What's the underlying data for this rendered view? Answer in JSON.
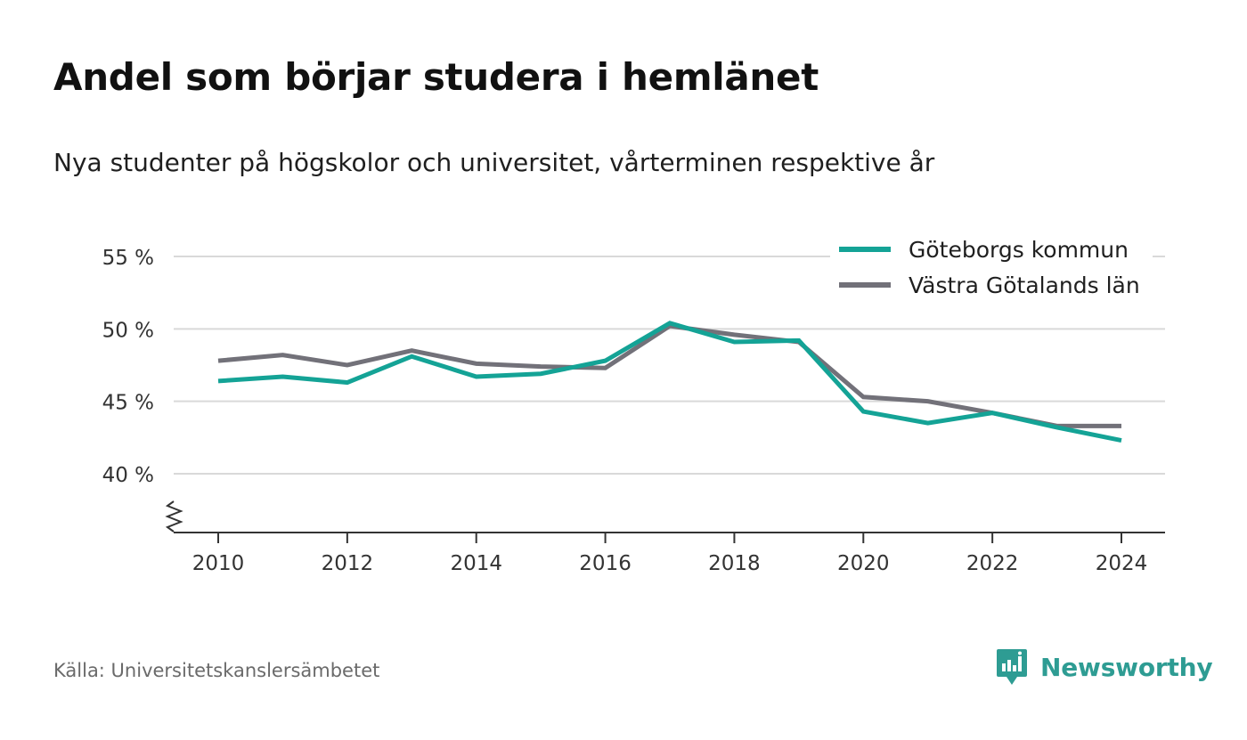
{
  "title": "Andel som börjar studera i hemlänet",
  "subtitle": "Nya studenter på högskolor och universitet, vårterminen respektive år",
  "source": "Källa: Universitetskanslersämbetet",
  "brand": {
    "name": "Newsworthy",
    "color": "#2e9c93",
    "icon": "chart-bubble-icon"
  },
  "chart_data": {
    "type": "line",
    "x": [
      2010,
      2011,
      2012,
      2013,
      2014,
      2015,
      2016,
      2017,
      2018,
      2019,
      2020,
      2021,
      2022,
      2023,
      2024
    ],
    "x_ticks": [
      2010,
      2012,
      2014,
      2016,
      2018,
      2020,
      2022,
      2024
    ],
    "x_tick_labels": [
      "2010",
      "2012",
      "2014",
      "2016",
      "2018",
      "2020",
      "2022",
      "2024"
    ],
    "y_ticks": [
      40,
      45,
      50,
      55
    ],
    "y_tick_labels": [
      "40 %",
      "45 %",
      "50 %",
      "55 %"
    ],
    "ylim": [
      36,
      55
    ],
    "axis_break": true,
    "grid": true,
    "legend_position": "top-right",
    "series": [
      {
        "name": "Göteborgs kommun",
        "color": "#14a396",
        "values": [
          46.4,
          46.7,
          46.3,
          48.1,
          46.7,
          46.9,
          47.8,
          50.4,
          49.1,
          49.2,
          44.3,
          43.5,
          44.2,
          43.2,
          42.3
        ]
      },
      {
        "name": "Västra Götalands län",
        "color": "#727179",
        "values": [
          47.8,
          48.2,
          47.5,
          48.5,
          47.6,
          47.4,
          47.3,
          50.2,
          49.6,
          49.1,
          45.3,
          45.0,
          44.2,
          43.3,
          43.3
        ]
      }
    ]
  }
}
